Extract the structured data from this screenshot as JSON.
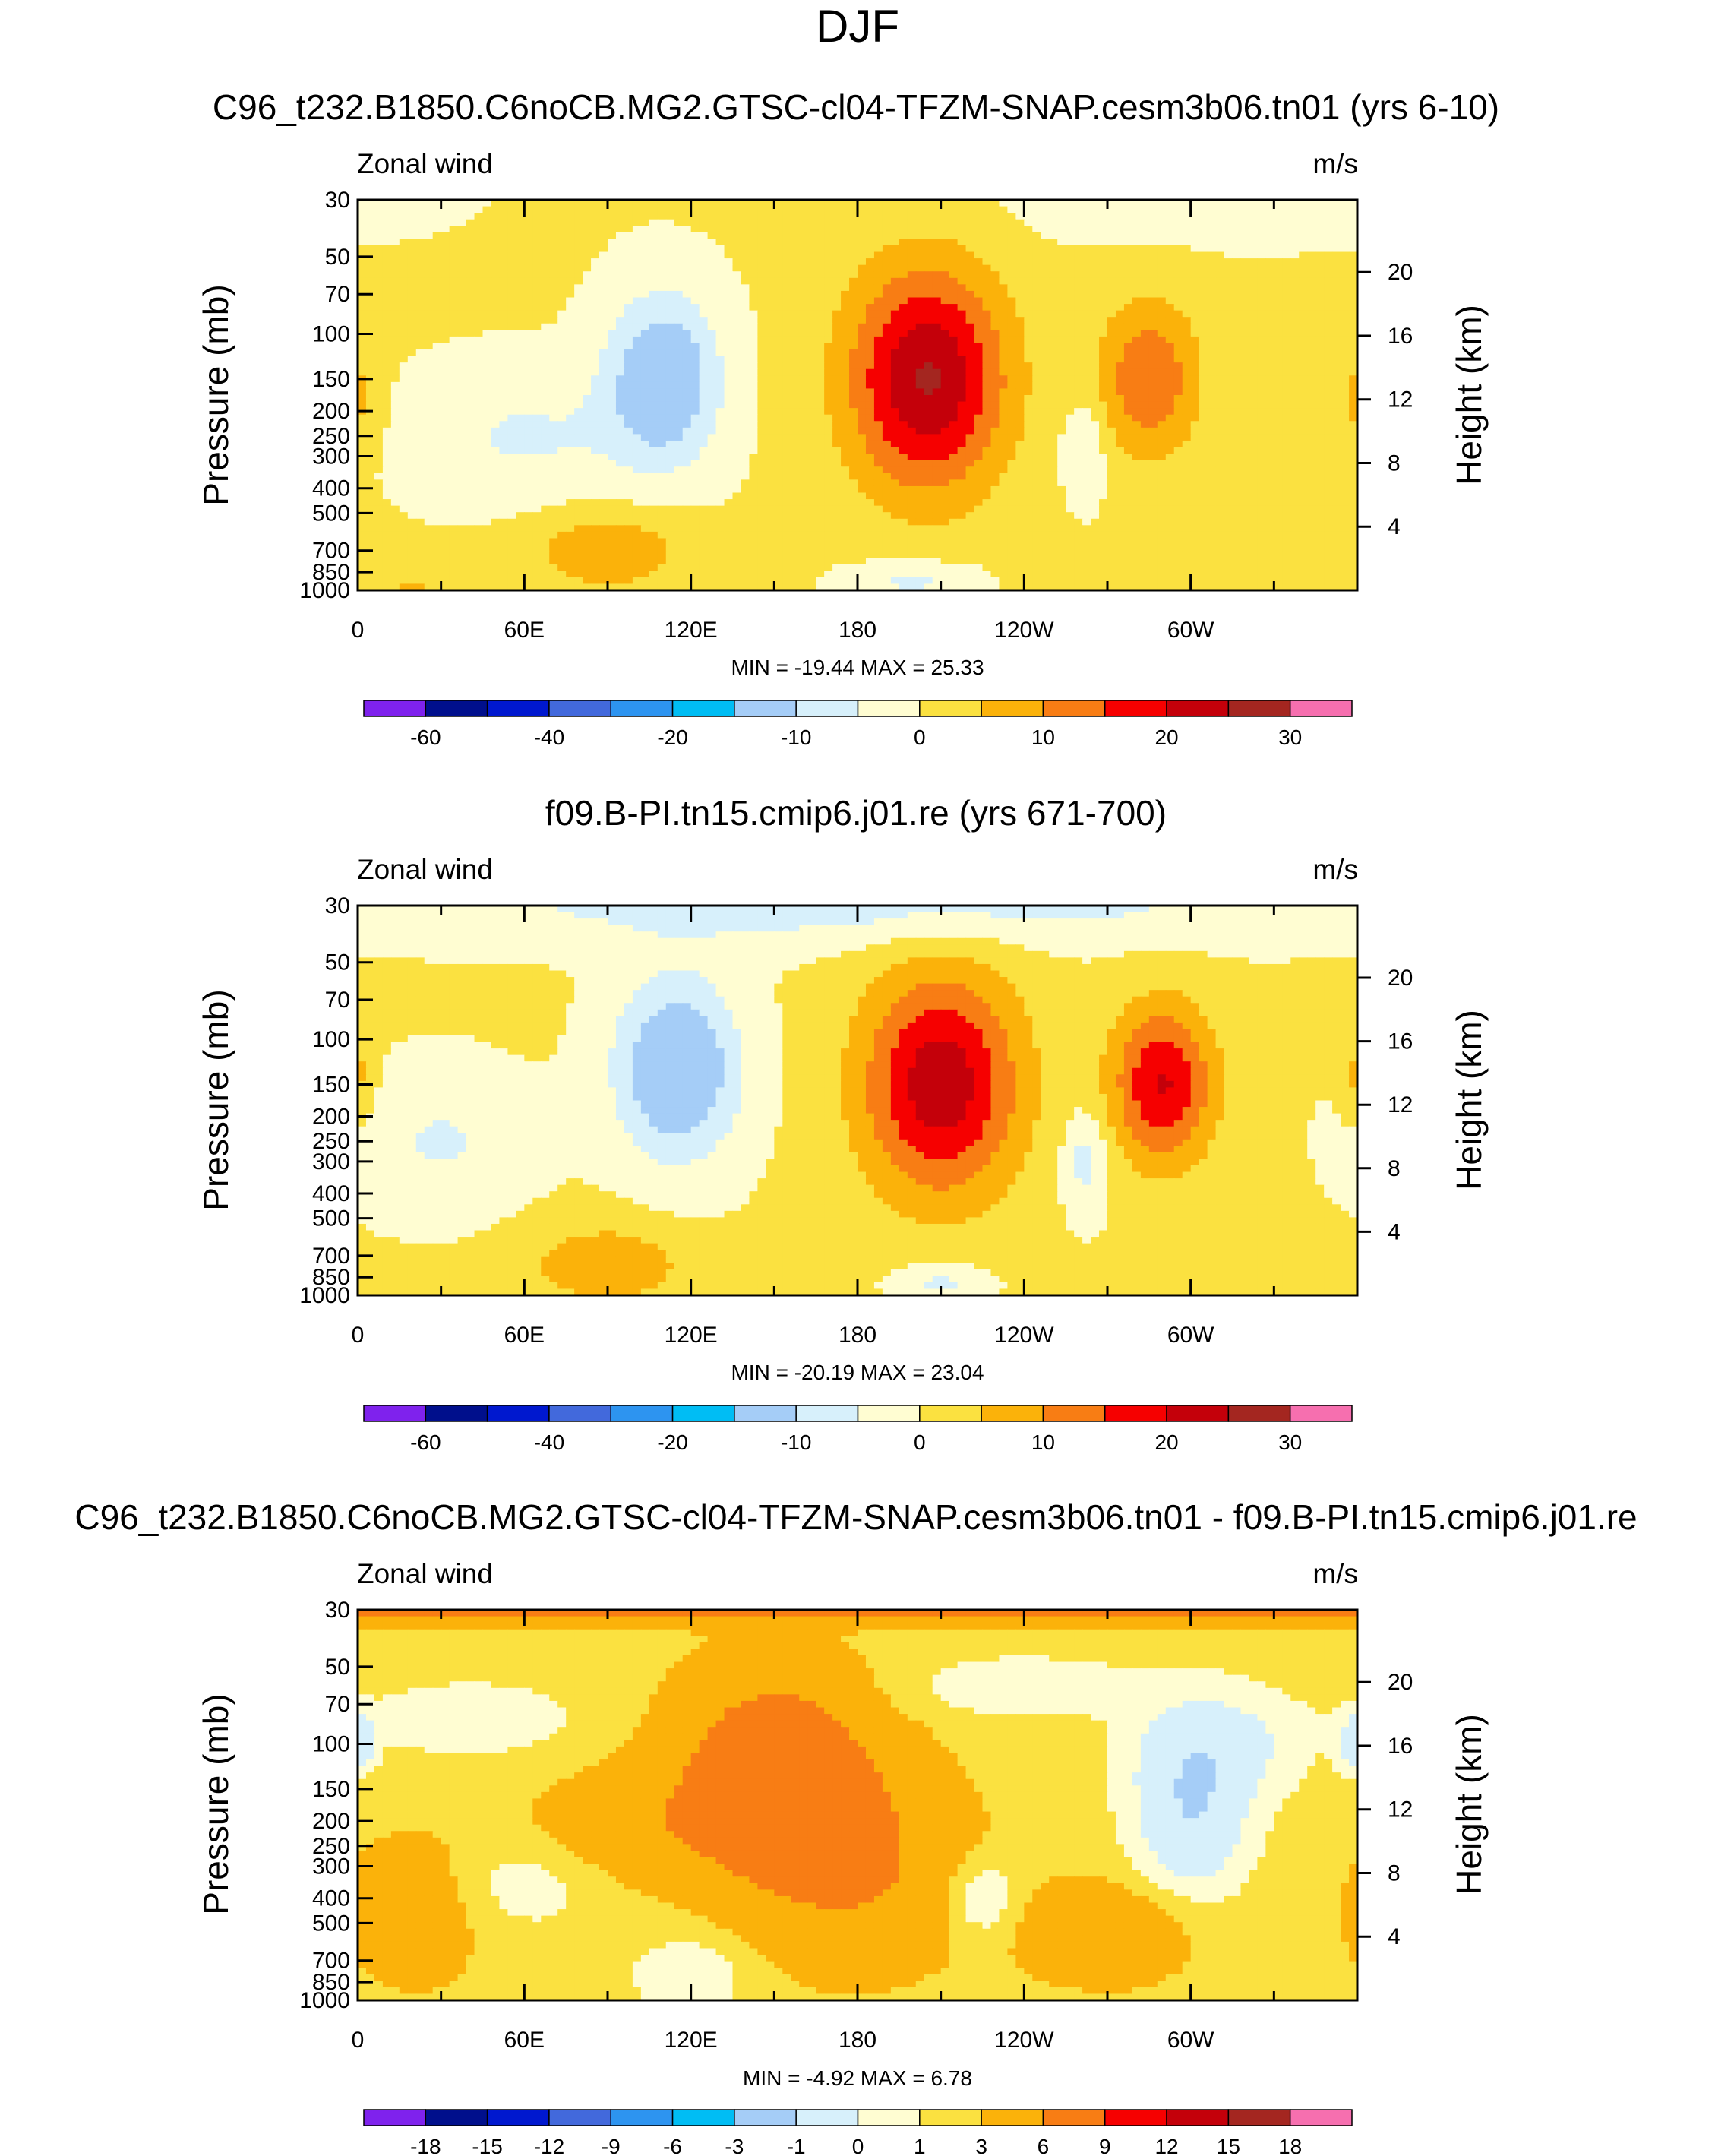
{
  "figure": {
    "main_title": "DJF"
  },
  "chart_data": [
    {
      "type": "heatmap",
      "subtype": "filled-contour",
      "title": "C96_t232.B1850.C6noCB.MG2.GTSC-cl04-TFZM-SNAP.cesm3b06.tn01 (yrs 6-10)",
      "left_label": "Zonal wind",
      "right_label": "m/s",
      "ylabel": "Pressure (mb)",
      "ylabel_right": "Height (km)",
      "x_ticks": [
        "0",
        "60E",
        "120E",
        "180",
        "120W",
        "60W"
      ],
      "pressure_ticks": [
        "30",
        "50",
        "70",
        "100",
        "150",
        "200",
        "250",
        "300",
        "400",
        "500",
        "700",
        "850",
        "1000"
      ],
      "height_ticks": [
        "20",
        "16",
        "12",
        "8",
        "4"
      ],
      "stats": "MIN = -19.44  MAX =  25.33",
      "min": -19.44,
      "max": 25.33,
      "colorbar_labels": [
        "-60",
        "-40",
        "-20",
        "-10",
        "0",
        "10",
        "20",
        "30"
      ],
      "colorbar_colors": [
        "#7f22ed",
        "#000f8c",
        "#0018cf",
        "#4269dc",
        "#2d94f0",
        "#00bdf4",
        "#a5cdf7",
        "#d7f0fb",
        "#fffdd2",
        "#fbe140",
        "#fbb20a",
        "#f87d14",
        "#f60000",
        "#c4000a",
        "#a42620",
        "#f66faf"
      ],
      "blobs": [
        {
          "lon": 205,
          "p": 150,
          "rl": 28,
          "rp": 1.0,
          "v": 25
        },
        {
          "lon": 285,
          "p": 150,
          "rl": 18,
          "rp": 0.7,
          "v": 14
        },
        {
          "lon": 262,
          "p": 280,
          "rl": 8,
          "rp": 0.45,
          "v": -6
        },
        {
          "lon": 110,
          "p": 150,
          "rl": 20,
          "rp": 0.75,
          "v": -17
        },
        {
          "lon": 90,
          "p": 700,
          "rl": 28,
          "rp": 0.35,
          "v": 9
        },
        {
          "lon": 200,
          "p": 920,
          "rl": 22,
          "rp": 0.18,
          "v": -7
        },
        {
          "lon": 300,
          "p": 30,
          "rl": 80,
          "rp": 0.4,
          "v": -3
        },
        {
          "lon": 0,
          "p": 180,
          "rl": 8,
          "rp": 0.45,
          "v": 6
        },
        {
          "lon": 20,
          "p": 960,
          "rl": 15,
          "rp": 0.12,
          "v": 5
        },
        {
          "lon": 60,
          "p": 250,
          "rl": 40,
          "rp": 0.6,
          "v": -6
        }
      ]
    },
    {
      "type": "heatmap",
      "subtype": "filled-contour",
      "title": "f09.B-PI.tn15.cmip6.j01.re (yrs 671-700)",
      "left_label": "Zonal wind",
      "right_label": "m/s",
      "ylabel": "Pressure (mb)",
      "ylabel_right": "Height (km)",
      "x_ticks": [
        "0",
        "60E",
        "120E",
        "180",
        "120W",
        "60W"
      ],
      "pressure_ticks": [
        "30",
        "50",
        "70",
        "100",
        "150",
        "200",
        "250",
        "300",
        "400",
        "500",
        "700",
        "850",
        "1000"
      ],
      "height_ticks": [
        "20",
        "16",
        "12",
        "8",
        "4"
      ],
      "stats": "MIN = -20.19  MAX =  23.04",
      "min": -20.19,
      "max": 23.04,
      "colorbar_labels": [
        "-60",
        "-40",
        "-20",
        "-10",
        "0",
        "10",
        "20",
        "30"
      ],
      "colorbar_colors": [
        "#7f22ed",
        "#000f8c",
        "#0018cf",
        "#4269dc",
        "#2d94f0",
        "#00bdf4",
        "#a5cdf7",
        "#d7f0fb",
        "#fffdd2",
        "#fbe140",
        "#fbb20a",
        "#f87d14",
        "#f60000",
        "#c4000a",
        "#a42620",
        "#f66faf"
      ],
      "blobs": [
        {
          "lon": 210,
          "p": 150,
          "rl": 28,
          "rp": 1.0,
          "v": 23
        },
        {
          "lon": 290,
          "p": 150,
          "rl": 18,
          "rp": 0.7,
          "v": 20
        },
        {
          "lon": 262,
          "p": 300,
          "rl": 8,
          "rp": 0.45,
          "v": -8
        },
        {
          "lon": 115,
          "p": 130,
          "rl": 22,
          "rp": 0.8,
          "v": -18
        },
        {
          "lon": 90,
          "p": 760,
          "rl": 28,
          "rp": 0.35,
          "v": 9
        },
        {
          "lon": 210,
          "p": 900,
          "rl": 16,
          "rp": 0.18,
          "v": -7
        },
        {
          "lon": 180,
          "p": 30,
          "rl": 180,
          "rp": 0.35,
          "v": -8
        },
        {
          "lon": 30,
          "p": 250,
          "rl": 30,
          "rp": 0.6,
          "v": -6
        },
        {
          "lon": 0,
          "p": 140,
          "rl": 6,
          "rp": 0.4,
          "v": 6
        },
        {
          "lon": 20,
          "p": 960,
          "rl": 15,
          "rp": 0.12,
          "v": 4
        }
      ]
    },
    {
      "type": "heatmap",
      "subtype": "filled-contour",
      "title": "C96_t232.B1850.C6noCB.MG2.GTSC-cl04-TFZM-SNAP.cesm3b06.tn01 - f09.B-PI.tn15.cmip6.j01.re",
      "left_label": "Zonal wind",
      "right_label": "m/s",
      "ylabel": "Pressure (mb)",
      "ylabel_right": "Height (km)",
      "x_ticks": [
        "0",
        "60E",
        "120E",
        "180",
        "120W",
        "60W"
      ],
      "pressure_ticks": [
        "30",
        "50",
        "70",
        "100",
        "150",
        "200",
        "250",
        "300",
        "400",
        "500",
        "700",
        "850",
        "1000"
      ],
      "height_ticks": [
        "20",
        "16",
        "12",
        "8",
        "4"
      ],
      "stats": "MIN =  -4.92  MAX =   6.78",
      "min": -4.92,
      "max": 6.78,
      "colorbar_labels": [
        "-18",
        "-15",
        "-12",
        "-9",
        "-6",
        "-3",
        "-1",
        "0",
        "1",
        "3",
        "6",
        "9",
        "12",
        "15",
        "18"
      ],
      "colorbar_colors": [
        "#7f22ed",
        "#000f8c",
        "#0018cf",
        "#4269dc",
        "#2d94f0",
        "#00bdf4",
        "#a5cdf7",
        "#d7f0fb",
        "#fffdd2",
        "#fbe140",
        "#fbb20a",
        "#f87d14",
        "#f60000",
        "#c4000a",
        "#a42620",
        "#f66faf"
      ],
      "blobs": [
        {
          "lon": 180,
          "p": 30,
          "rl": 400,
          "rp": 0.12,
          "v": 3.5
        },
        {
          "lon": 150,
          "p": 130,
          "rl": 35,
          "rp": 0.9,
          "v": 4.5
        },
        {
          "lon": 180,
          "p": 300,
          "rl": 40,
          "rp": 0.9,
          "v": 2.5
        },
        {
          "lon": 300,
          "p": 190,
          "rl": 20,
          "rp": 0.7,
          "v": -3.2
        },
        {
          "lon": 310,
          "p": 100,
          "rl": 30,
          "rp": 0.5,
          "v": -2
        },
        {
          "lon": 240,
          "p": 60,
          "rl": 40,
          "rp": 0.25,
          "v": -1.5
        },
        {
          "lon": 40,
          "p": 80,
          "rl": 35,
          "rp": 0.3,
          "v": -1.5
        },
        {
          "lon": 60,
          "p": 350,
          "rl": 25,
          "rp": 0.4,
          "v": -1.2
        },
        {
          "lon": 120,
          "p": 800,
          "rl": 20,
          "rp": 0.35,
          "v": -1.5
        },
        {
          "lon": 225,
          "p": 400,
          "rl": 12,
          "rp": 0.35,
          "v": -2
        },
        {
          "lon": 270,
          "p": 550,
          "rl": 30,
          "rp": 0.45,
          "v": 2
        },
        {
          "lon": 20,
          "p": 450,
          "rl": 25,
          "rp": 0.7,
          "v": 1.5
        },
        {
          "lon": 0,
          "p": 100,
          "rl": 6,
          "rp": 0.25,
          "v": -3
        },
        {
          "lon": 100,
          "p": 210,
          "rl": 40,
          "rp": 0.5,
          "v": 1.5
        }
      ]
    }
  ]
}
